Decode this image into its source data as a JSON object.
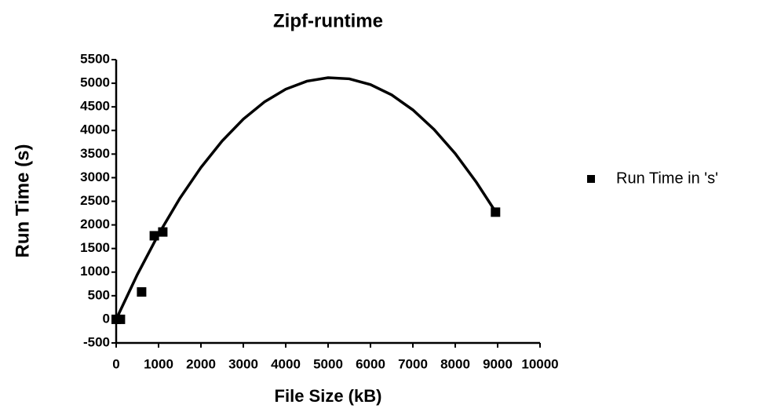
{
  "chart_data": {
    "type": "scatter",
    "title": "Zipf-runtime",
    "x_label": "File Size (kB)",
    "y_label": "Run Time (s)",
    "series": [
      {
        "name": "Run Time in 's'",
        "color": "#000000",
        "x": [
          0,
          100,
          600,
          900,
          1100,
          8950
        ],
        "values": [
          0,
          0,
          580,
          1770,
          1850,
          2270
        ]
      }
    ],
    "fit": {
      "color": "#000000",
      "x": [
        0,
        500,
        1000,
        1500,
        2000,
        2500,
        3000,
        3500,
        4000,
        4500,
        5000,
        5500,
        6000,
        6500,
        7000,
        7500,
        8000,
        8500,
        8950
      ],
      "values": [
        0,
        950,
        1803,
        2559,
        3217,
        3777,
        4241,
        4606,
        4874,
        5044,
        5118,
        5094,
        4972,
        4753,
        4436,
        4022,
        3510,
        2901,
        2280
      ]
    },
    "xlim": [
      0,
      10000
    ],
    "xticks": [
      0,
      1000,
      2000,
      3000,
      4000,
      5000,
      6000,
      7000,
      8000,
      9000,
      10000
    ],
    "ylim": [
      -500,
      5500
    ],
    "yticks": [
      -500,
      0,
      500,
      1000,
      1500,
      2000,
      2500,
      3000,
      3500,
      4000,
      4500,
      5000,
      5500
    ],
    "grid": false
  }
}
